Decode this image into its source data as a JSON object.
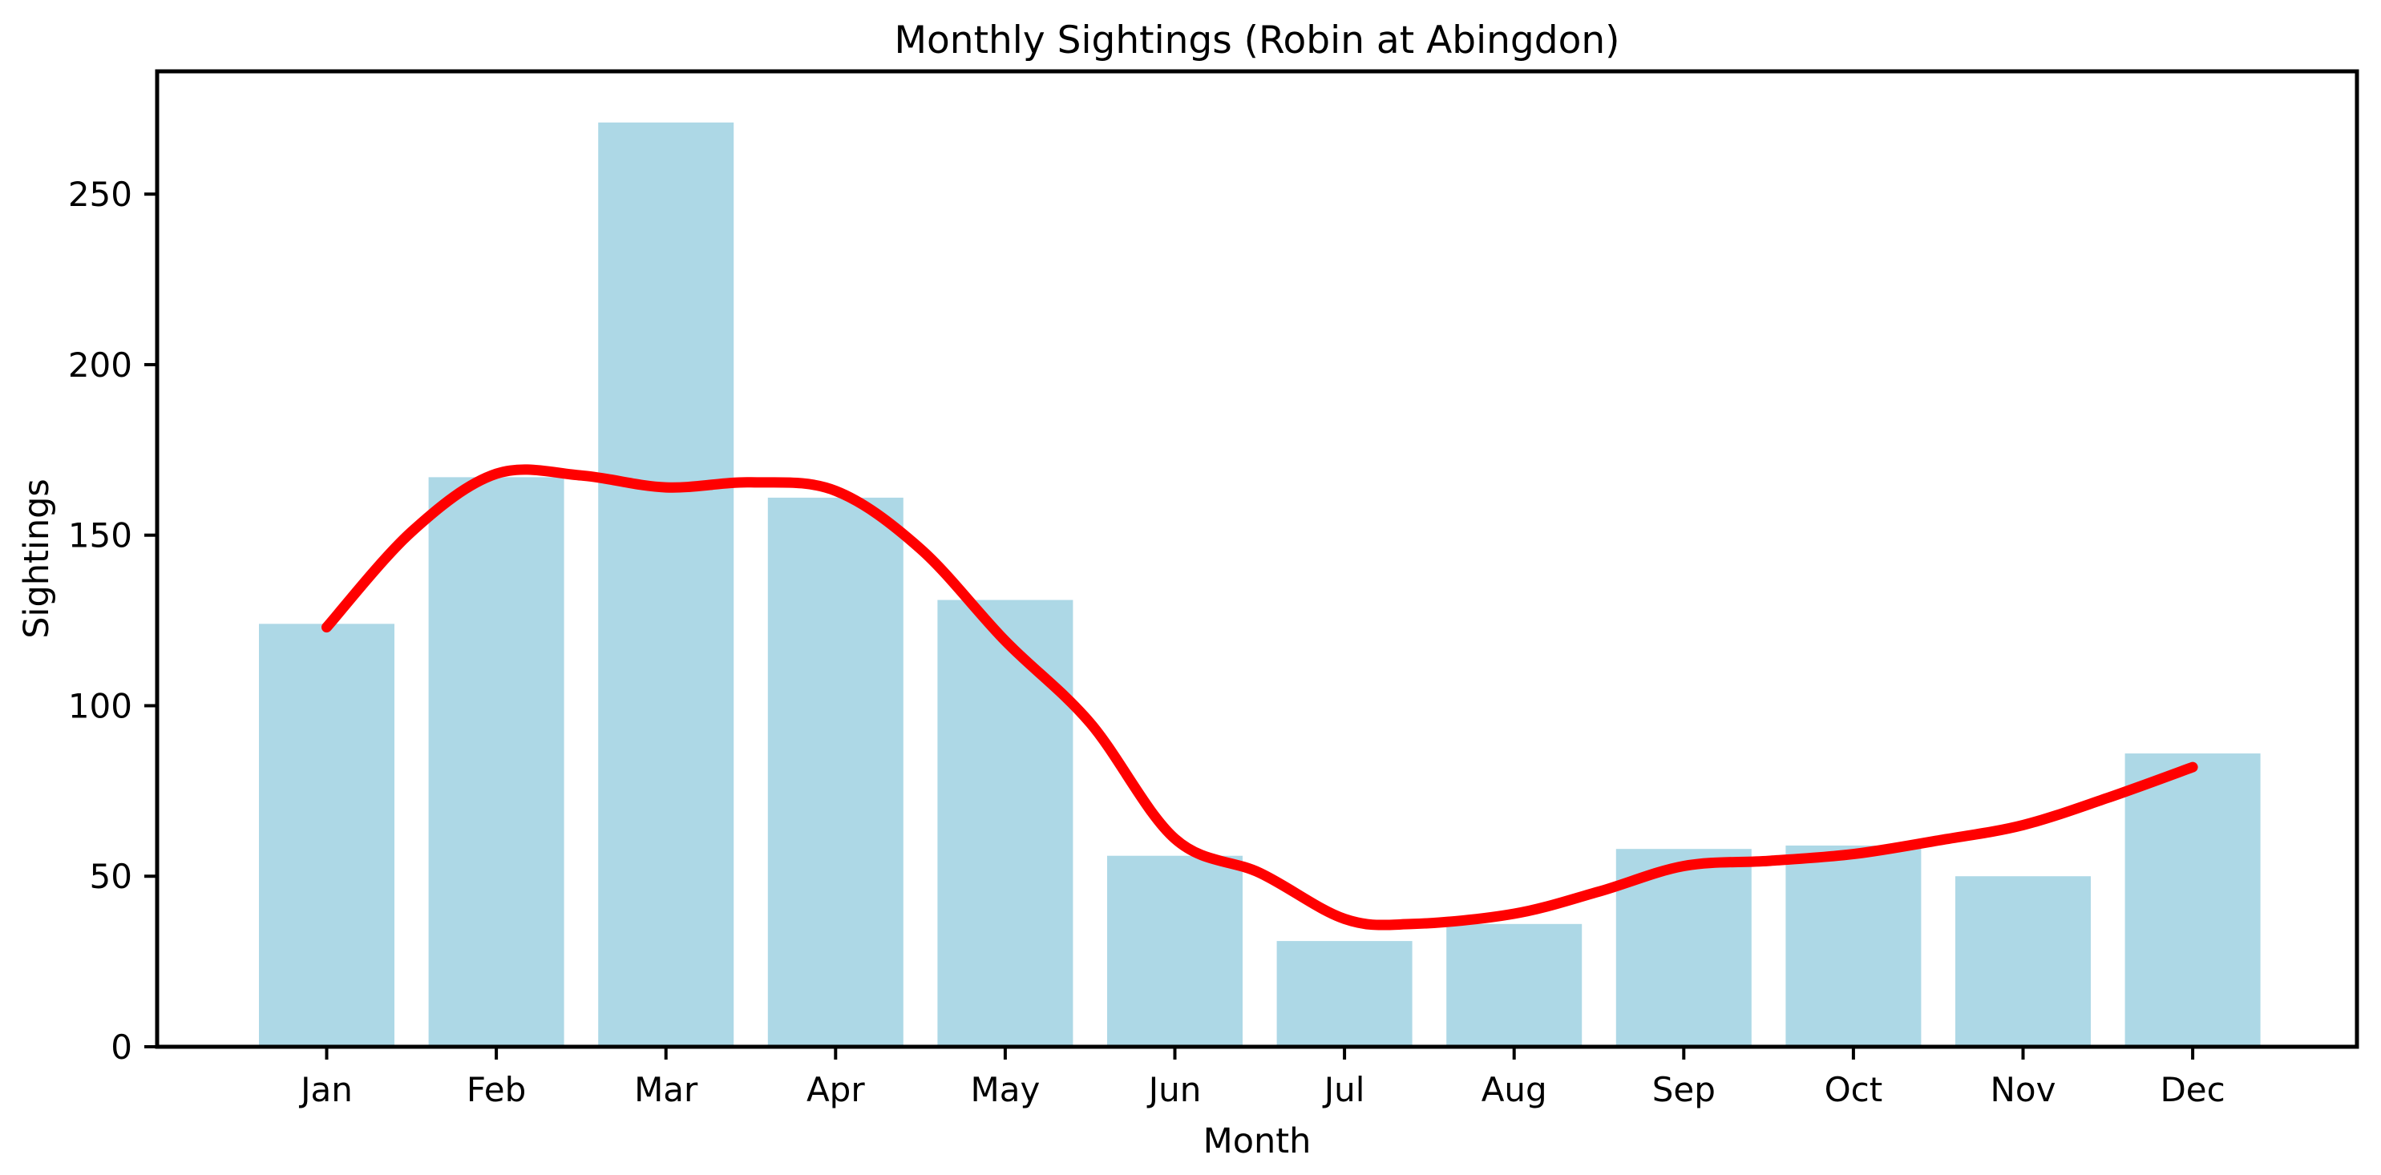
{
  "chart_data": {
    "type": "bar",
    "title": "Monthly Sightings (Robin at Abingdon)",
    "xlabel": "Month",
    "ylabel": "Sightings",
    "categories": [
      "Jan",
      "Feb",
      "Mar",
      "Apr",
      "May",
      "Jun",
      "Jul",
      "Aug",
      "Sep",
      "Oct",
      "Nov",
      "Dec"
    ],
    "series": [
      {
        "name": "bars",
        "type": "bar",
        "color": "#ADD8E6",
        "values": [
          124,
          167,
          271,
          161,
          131,
          56,
          31,
          36,
          58,
          59,
          50,
          86
        ]
      },
      {
        "name": "trend-line",
        "type": "line",
        "color": "#FF0000",
        "points": [
          [
            0,
            123
          ],
          [
            0.5,
            151
          ],
          [
            1,
            168
          ],
          [
            1.5,
            167.5
          ],
          [
            2,
            164
          ],
          [
            2.5,
            165.5
          ],
          [
            3,
            163
          ],
          [
            3.5,
            146
          ],
          [
            4,
            119
          ],
          [
            4.5,
            95
          ],
          [
            5,
            61
          ],
          [
            5.5,
            51
          ],
          [
            6,
            37.5
          ],
          [
            6.4,
            36
          ],
          [
            7,
            39
          ],
          [
            7.5,
            45.5
          ],
          [
            8,
            53
          ],
          [
            8.5,
            54.5
          ],
          [
            9,
            56.5
          ],
          [
            9.5,
            60.5
          ],
          [
            10,
            65
          ],
          [
            10.5,
            73
          ],
          [
            11,
            82
          ]
        ]
      }
    ],
    "ylim": [
      0,
      286
    ],
    "yticks": [
      0,
      50,
      100,
      150,
      200,
      250
    ],
    "grid": false,
    "legend": "none",
    "background_color": "#FFFFFF",
    "axis_color": "#000000"
  }
}
